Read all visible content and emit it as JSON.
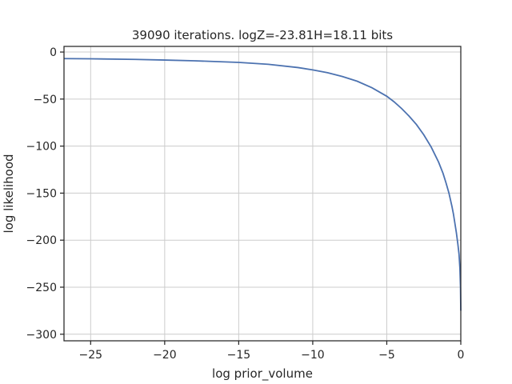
{
  "chart_data": {
    "type": "line",
    "title": "39090 iterations. logZ=-23.81H=18.11 bits",
    "xlabel": "log prior_volume",
    "ylabel": "log likelihood",
    "xlim": [
      -26.8,
      0
    ],
    "ylim": [
      -307,
      6
    ],
    "xticks": [
      -25,
      -20,
      -15,
      -10,
      -5,
      0
    ],
    "yticks": [
      0,
      -50,
      -100,
      -150,
      -200,
      -250,
      -300
    ],
    "grid": true,
    "series": [
      {
        "color": "#4c72b0",
        "x": [
          -26.8,
          -25,
          -22,
          -20,
          -18,
          -15,
          -13,
          -11,
          -10,
          -9,
          -8,
          -7,
          -6,
          -5,
          -4.5,
          -4,
          -3.5,
          -3,
          -2.5,
          -2,
          -1.5,
          -1.2,
          -1.0,
          -0.8,
          -0.6,
          -0.5,
          -0.4,
          -0.3,
          -0.2,
          -0.12,
          -0.06,
          -0.02,
          0
        ],
        "y": [
          -7,
          -7.2,
          -7.8,
          -8.5,
          -9.3,
          -11,
          -13,
          -16.5,
          -19,
          -22,
          -26,
          -31,
          -38,
          -47,
          -53,
          -60,
          -68,
          -77,
          -88,
          -101,
          -117,
          -129,
          -139,
          -150,
          -164,
          -172,
          -182,
          -192,
          -204,
          -215,
          -230,
          -250,
          -275
        ]
      }
    ]
  }
}
